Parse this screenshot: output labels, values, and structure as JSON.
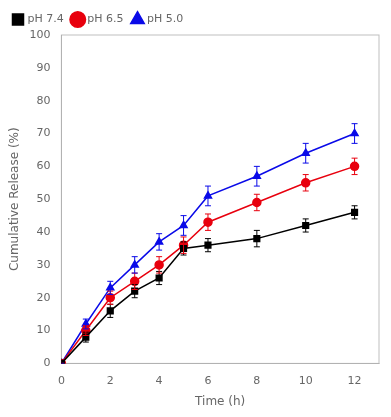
{
  "chart_data": {
    "type": "line",
    "x": [
      0,
      1,
      2,
      3,
      4,
      5,
      6,
      8,
      10,
      12
    ],
    "series": [
      {
        "name": "pH 7.4",
        "color": "#000000",
        "marker": "square",
        "values": [
          0,
          8,
          16,
          22,
          26,
          35,
          36,
          38,
          42,
          46
        ],
        "errors": [
          0,
          1.5,
          2,
          2,
          2,
          2,
          2,
          2.5,
          2,
          2
        ]
      },
      {
        "name": "pH 6.5",
        "color": "#e8000e",
        "marker": "circle",
        "values": [
          0,
          10,
          20,
          25,
          30,
          36,
          43,
          49,
          55,
          60
        ],
        "errors": [
          0,
          1.5,
          2,
          2.5,
          2.5,
          2.5,
          2.5,
          2.5,
          2.5,
          2.5
        ]
      },
      {
        "name": "pH 5.0",
        "color": "#0a0ae8",
        "marker": "triangle",
        "values": [
          0,
          12,
          23,
          30,
          37,
          42,
          51,
          57,
          64,
          70
        ],
        "errors": [
          0,
          1.5,
          2,
          2.5,
          2.5,
          3,
          3,
          3,
          3,
          3
        ]
      }
    ],
    "xlabel": "Time (h)",
    "ylabel": "Cumulative Release (%)",
    "xlim": [
      0,
      13
    ],
    "ylim": [
      0,
      100
    ],
    "xticks": [
      0,
      2,
      4,
      6,
      8,
      10,
      12
    ],
    "yticks": [
      0,
      10,
      20,
      30,
      40,
      50,
      60,
      70,
      80,
      90,
      100
    ],
    "grid": false,
    "legend": "upper left"
  }
}
